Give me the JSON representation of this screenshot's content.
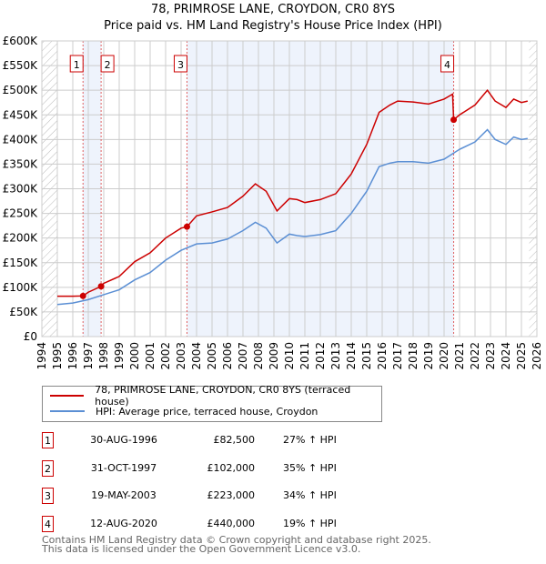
{
  "chart_data": {
    "type": "line",
    "title": "78, PRIMROSE LANE, CROYDON, CR0 8YS",
    "subtitle": "Price paid vs. HM Land Registry's House Price Index (HPI)",
    "xlim": [
      1994,
      2026
    ],
    "ylim": [
      0,
      600000
    ],
    "yticks": [
      "£0",
      "£50K",
      "£100K",
      "£150K",
      "£200K",
      "£250K",
      "£300K",
      "£350K",
      "£400K",
      "£450K",
      "£500K",
      "£550K",
      "£600K"
    ],
    "xticks": [
      "1994",
      "1995",
      "1996",
      "1997",
      "1998",
      "1999",
      "2000",
      "2001",
      "2002",
      "2003",
      "2004",
      "2005",
      "2006",
      "2007",
      "2008",
      "2009",
      "2010",
      "2011",
      "2012",
      "2013",
      "2014",
      "2015",
      "2016",
      "2017",
      "2018",
      "2019",
      "2020",
      "2021",
      "2022",
      "2023",
      "2024",
      "2025",
      "2026"
    ],
    "grid": true,
    "data_range": [
      1995,
      2025.5
    ],
    "series": [
      {
        "name": "78, PRIMROSE LANE, CROYDON, CR0 8YS (terraced house)",
        "color": "#cc0000",
        "x": [
          1995,
          1996,
          1996.66,
          1997,
          1997.83,
          1998,
          1999,
          2000,
          2001,
          2002,
          2003,
          2003.38,
          2004,
          2005,
          2006,
          2007,
          2007.8,
          2008.5,
          2009.2,
          2010,
          2010.5,
          2011,
          2012,
          2013,
          2014,
          2015,
          2015.8,
          2016.5,
          2017,
          2018,
          2019,
          2020,
          2020.55,
          2020.62,
          2021,
          2022,
          2022.8,
          2023.3,
          2024,
          2024.5,
          2025,
          2025.4
        ],
        "y": [
          82000,
          82000,
          82500,
          90000,
          102000,
          108000,
          122000,
          152000,
          170000,
          200000,
          220000,
          223000,
          245000,
          253000,
          262000,
          285000,
          310000,
          295000,
          255000,
          280000,
          278000,
          272000,
          278000,
          290000,
          330000,
          390000,
          455000,
          470000,
          478000,
          476000,
          472000,
          482000,
          492000,
          440000,
          450000,
          470000,
          500000,
          478000,
          465000,
          482000,
          475000,
          478000
        ]
      },
      {
        "name": "HPI: Average price, terraced house, Croydon",
        "color": "#5b8fd4",
        "x": [
          1995,
          1996,
          1997,
          1998,
          1999,
          2000,
          2001,
          2002,
          2003,
          2004,
          2005,
          2006,
          2007,
          2007.8,
          2008.5,
          2009.2,
          2010,
          2010.5,
          2011,
          2012,
          2013,
          2014,
          2015,
          2015.8,
          2016.5,
          2017,
          2018,
          2019,
          2020,
          2020.6,
          2021,
          2022,
          2022.8,
          2023.3,
          2024,
          2024.5,
          2025,
          2025.4
        ],
        "y": [
          65000,
          68000,
          75000,
          85000,
          95000,
          115000,
          130000,
          155000,
          175000,
          188000,
          190000,
          198000,
          215000,
          232000,
          220000,
          190000,
          208000,
          205000,
          203000,
          207000,
          215000,
          250000,
          295000,
          345000,
          352000,
          355000,
          355000,
          352000,
          360000,
          372000,
          380000,
          395000,
          420000,
          400000,
          390000,
          405000,
          400000,
          402000
        ]
      }
    ],
    "sales": [
      {
        "label": "1",
        "x": 1996.66,
        "y": 82500,
        "date": "30-AUG-1996",
        "price": "£82,500",
        "hpi": "27% ↑ HPI"
      },
      {
        "label": "2",
        "x": 1997.83,
        "y": 102000,
        "date": "31-OCT-1997",
        "price": "£102,000",
        "hpi": "35% ↑ HPI"
      },
      {
        "label": "3",
        "x": 2003.38,
        "y": 223000,
        "date": "19-MAY-2003",
        "price": "£223,000",
        "hpi": "34% ↑ HPI"
      },
      {
        "label": "4",
        "x": 2020.62,
        "y": 440000,
        "date": "12-AUG-2020",
        "price": "£440,000",
        "hpi": "19% ↑ HPI"
      }
    ],
    "shaded_periods": [
      [
        1996.66,
        1997.83
      ],
      [
        2003.38,
        2020.62
      ]
    ]
  },
  "footer": {
    "line1": "Contains HM Land Registry data © Crown copyright and database right 2025.",
    "line2": "This data is licensed under the Open Government Licence v3.0."
  }
}
